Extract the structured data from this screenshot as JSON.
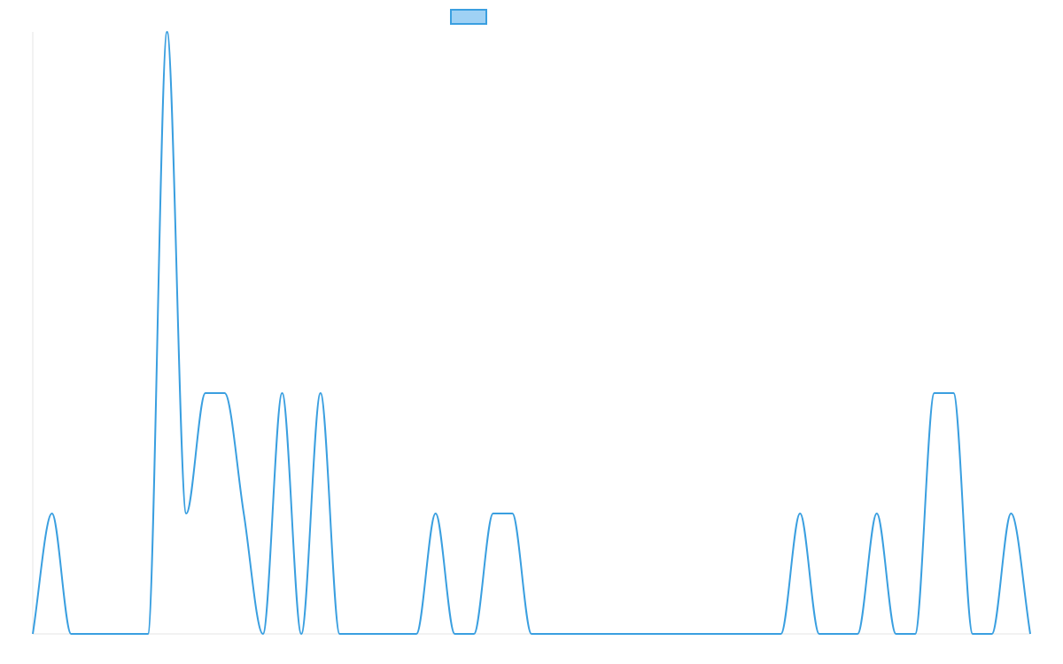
{
  "chart_data": {
    "type": "line",
    "title": "",
    "xlabel": "",
    "ylabel": "",
    "grid": false,
    "legend_position": "top",
    "series": [
      {
        "values": [
          0,
          1,
          0,
          0,
          0,
          0,
          0,
          5,
          1,
          2,
          2,
          1,
          0,
          2,
          0,
          2,
          0,
          0,
          0,
          0,
          0,
          1,
          0,
          0,
          1,
          1,
          0,
          0,
          0,
          0,
          0,
          0,
          0,
          0,
          0,
          0,
          0,
          0,
          0,
          0,
          1,
          0,
          0,
          0,
          1,
          0,
          0,
          2,
          2,
          0,
          0,
          1,
          0
        ]
      }
    ],
    "ylim": [
      0,
      5
    ],
    "line_color": "#3a9fe0",
    "fill_color": "#9fd1f4"
  }
}
